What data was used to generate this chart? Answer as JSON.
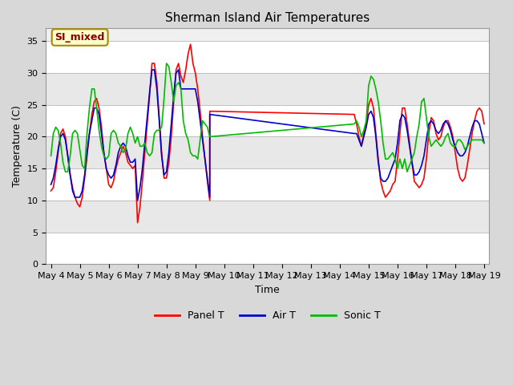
{
  "title": "Sherman Island Air Temperatures",
  "xlabel": "Time",
  "ylabel": "Temperature (C)",
  "xlim_days": [
    3.83,
    19.17
  ],
  "ylim": [
    0,
    37
  ],
  "yticks": [
    0,
    5,
    10,
    15,
    20,
    25,
    30,
    35
  ],
  "xtick_labels": [
    "May 4",
    "May 5",
    "May 6",
    "May 7",
    "May 8",
    "May 9",
    "May 10",
    "May 11",
    "May 12",
    "May 13",
    "May 14",
    "May 15",
    "May 16",
    "May 17",
    "May 18",
    "May 19"
  ],
  "xtick_days": [
    4,
    5,
    6,
    7,
    8,
    9,
    10,
    11,
    12,
    13,
    14,
    15,
    16,
    17,
    18,
    19
  ],
  "fig_bg_color": "#d8d8d8",
  "plot_bg_color": "#f0f0f0",
  "grid_color": "#ffffff",
  "annotation_text": "SI_mixed",
  "annotation_color": "#8b0000",
  "annotation_bg": "#ffffcc",
  "annotation_box_edge": "#aa8800",
  "panel_T_color": "#ff0000",
  "air_T_color": "#0000cc",
  "sonic_T_color": "#00bb00",
  "panel_T_label": "Panel T",
  "air_T_label": "Air T",
  "sonic_T_label": "Sonic T",
  "panel_T_x": [
    4.0,
    4.083,
    4.167,
    4.25,
    4.333,
    4.417,
    4.5,
    4.583,
    4.667,
    4.75,
    4.833,
    4.917,
    5.0,
    5.083,
    5.167,
    5.25,
    5.333,
    5.417,
    5.5,
    5.583,
    5.667,
    5.75,
    5.833,
    5.917,
    6.0,
    6.083,
    6.167,
    6.25,
    6.333,
    6.417,
    6.5,
    6.583,
    6.667,
    6.75,
    6.833,
    6.917,
    7.0,
    7.083,
    7.167,
    7.25,
    7.333,
    7.417,
    7.5,
    7.583,
    7.667,
    7.75,
    7.833,
    7.917,
    8.0,
    8.083,
    8.167,
    8.25,
    8.333,
    8.417,
    8.5,
    8.583,
    8.667,
    8.75,
    8.833,
    8.917,
    9.0,
    9.083,
    9.167,
    9.25,
    9.333,
    9.417,
    9.5,
    9.5,
    14.5,
    14.5,
    14.583,
    14.667,
    14.75,
    14.833,
    14.917,
    15.0,
    15.083,
    15.167,
    15.25,
    15.333,
    15.417,
    15.5,
    15.583,
    15.667,
    15.75,
    15.833,
    15.917,
    16.0,
    16.083,
    16.167,
    16.25,
    16.333,
    16.417,
    16.5,
    16.583,
    16.667,
    16.75,
    16.833,
    16.917,
    17.0,
    17.083,
    17.167,
    17.25,
    17.333,
    17.417,
    17.5,
    17.583,
    17.667,
    17.75,
    17.833,
    17.917,
    18.0,
    18.083,
    18.167,
    18.25,
    18.333,
    18.417,
    18.5,
    18.583,
    18.667,
    18.75,
    18.833,
    18.917,
    19.0
  ],
  "panel_T_y": [
    11.5,
    12.0,
    14.5,
    17.5,
    20.5,
    21.2,
    20.0,
    17.0,
    14.0,
    12.0,
    10.5,
    9.5,
    9.0,
    10.5,
    13.5,
    17.0,
    20.5,
    23.5,
    25.5,
    26.0,
    24.5,
    21.5,
    17.5,
    15.0,
    12.5,
    12.0,
    13.0,
    15.0,
    16.5,
    17.5,
    18.5,
    17.5,
    16.0,
    15.5,
    15.0,
    15.5,
    6.5,
    9.0,
    13.0,
    17.5,
    22.0,
    26.5,
    31.5,
    31.5,
    28.5,
    23.0,
    17.5,
    13.5,
    13.5,
    16.0,
    20.0,
    25.5,
    30.5,
    31.5,
    29.5,
    28.5,
    30.5,
    33.0,
    34.5,
    31.5,
    30.0,
    27.5,
    24.0,
    20.0,
    16.5,
    13.0,
    10.0,
    24.0,
    23.5,
    23.5,
    22.0,
    20.0,
    18.5,
    20.5,
    22.0,
    25.0,
    26.0,
    24.5,
    20.5,
    16.5,
    13.0,
    11.5,
    10.5,
    11.0,
    11.5,
    12.5,
    13.0,
    16.5,
    20.5,
    24.5,
    24.5,
    22.0,
    19.0,
    16.0,
    13.0,
    12.5,
    12.0,
    12.5,
    13.5,
    16.5,
    20.5,
    23.0,
    22.5,
    20.5,
    19.5,
    20.0,
    21.5,
    22.5,
    22.5,
    21.5,
    20.0,
    17.5,
    15.0,
    13.5,
    13.0,
    13.5,
    15.5,
    18.0,
    20.5,
    22.5,
    24.0,
    24.5,
    24.0,
    22.0
  ],
  "air_T_x": [
    4.0,
    4.083,
    4.167,
    4.25,
    4.333,
    4.417,
    4.5,
    4.583,
    4.667,
    4.75,
    4.833,
    4.917,
    5.0,
    5.083,
    5.167,
    5.25,
    5.333,
    5.417,
    5.5,
    5.583,
    5.667,
    5.75,
    5.833,
    5.917,
    6.0,
    6.083,
    6.167,
    6.25,
    6.333,
    6.417,
    6.5,
    6.583,
    6.667,
    6.75,
    6.833,
    6.917,
    7.0,
    7.083,
    7.167,
    7.25,
    7.333,
    7.417,
    7.5,
    7.583,
    7.667,
    7.75,
    7.833,
    7.917,
    8.0,
    8.083,
    8.167,
    8.25,
    8.333,
    8.417,
    8.5,
    8.583,
    8.667,
    8.75,
    8.833,
    8.917,
    9.0,
    9.083,
    9.167,
    9.25,
    9.333,
    9.417,
    9.5,
    9.5,
    14.5,
    14.5,
    14.583,
    14.667,
    14.75,
    14.833,
    14.917,
    15.0,
    15.083,
    15.167,
    15.25,
    15.333,
    15.417,
    15.5,
    15.583,
    15.667,
    15.75,
    15.833,
    15.917,
    16.0,
    16.083,
    16.167,
    16.25,
    16.333,
    16.417,
    16.5,
    16.583,
    16.667,
    16.75,
    16.833,
    16.917,
    17.0,
    17.083,
    17.167,
    17.25,
    17.333,
    17.417,
    17.5,
    17.583,
    17.667,
    17.75,
    17.833,
    17.917,
    18.0,
    18.083,
    18.167,
    18.25,
    18.333,
    18.417,
    18.5,
    18.583,
    18.667,
    18.75,
    18.833,
    18.917,
    19.0
  ],
  "air_T_y": [
    12.5,
    13.5,
    15.5,
    18.0,
    20.0,
    20.5,
    19.5,
    17.0,
    14.0,
    11.5,
    10.5,
    10.5,
    10.5,
    11.5,
    14.0,
    17.5,
    20.5,
    22.5,
    24.5,
    24.5,
    23.5,
    20.5,
    17.5,
    15.0,
    14.0,
    13.5,
    14.0,
    15.5,
    17.5,
    18.5,
    19.0,
    18.5,
    17.0,
    16.0,
    16.0,
    16.5,
    10.0,
    12.0,
    15.0,
    19.0,
    23.0,
    27.0,
    30.5,
    30.5,
    27.5,
    22.5,
    17.0,
    14.0,
    14.5,
    17.5,
    22.0,
    26.5,
    30.0,
    30.5,
    27.5,
    27.5,
    27.5,
    27.5,
    27.5,
    27.5,
    27.5,
    25.5,
    22.5,
    19.5,
    16.5,
    13.5,
    10.5,
    23.5,
    20.5,
    20.5,
    20.5,
    19.5,
    18.5,
    20.0,
    21.5,
    23.5,
    24.0,
    23.0,
    20.0,
    16.0,
    13.5,
    13.0,
    13.0,
    13.5,
    14.5,
    15.5,
    16.5,
    19.0,
    22.5,
    23.5,
    23.0,
    21.0,
    18.5,
    16.0,
    14.0,
    14.0,
    14.5,
    15.5,
    17.0,
    19.5,
    22.0,
    22.5,
    22.0,
    21.0,
    20.5,
    21.0,
    22.0,
    22.5,
    22.0,
    21.0,
    19.5,
    18.5,
    17.5,
    17.0,
    17.0,
    17.5,
    18.5,
    20.0,
    21.5,
    22.5,
    22.5,
    22.0,
    20.5,
    19.0
  ],
  "sonic_T_x": [
    4.0,
    4.083,
    4.167,
    4.25,
    4.333,
    4.417,
    4.5,
    4.583,
    4.667,
    4.75,
    4.833,
    4.917,
    5.0,
    5.083,
    5.167,
    5.25,
    5.333,
    5.417,
    5.5,
    5.583,
    5.667,
    5.75,
    5.833,
    5.917,
    6.0,
    6.083,
    6.167,
    6.25,
    6.333,
    6.417,
    6.5,
    6.583,
    6.667,
    6.75,
    6.833,
    6.917,
    7.0,
    7.083,
    7.167,
    7.25,
    7.333,
    7.417,
    7.5,
    7.583,
    7.667,
    7.75,
    7.833,
    7.917,
    8.0,
    8.083,
    8.167,
    8.25,
    8.333,
    8.417,
    8.5,
    8.583,
    8.667,
    8.75,
    8.833,
    8.917,
    9.0,
    9.083,
    9.167,
    9.25,
    9.333,
    9.417,
    9.5,
    14.5,
    14.583,
    14.667,
    14.75,
    14.833,
    14.917,
    15.0,
    15.083,
    15.167,
    15.25,
    15.333,
    15.417,
    15.5,
    15.583,
    15.667,
    15.75,
    15.833,
    15.917,
    16.0,
    16.083,
    16.167,
    16.25,
    16.333,
    16.417,
    16.5,
    16.583,
    16.667,
    16.75,
    16.833,
    16.917,
    17.0,
    17.083,
    17.167,
    17.25,
    17.333,
    17.417,
    17.5,
    17.583,
    17.667,
    17.75,
    17.833,
    17.917,
    18.0,
    18.083,
    18.167,
    18.25,
    18.333,
    18.417,
    18.5,
    18.583,
    18.667,
    18.75,
    18.833,
    18.917,
    19.0
  ],
  "sonic_T_y": [
    17.0,
    20.5,
    21.5,
    21.0,
    19.0,
    16.0,
    14.5,
    14.5,
    17.0,
    20.5,
    21.0,
    20.5,
    18.0,
    15.5,
    15.0,
    20.5,
    24.5,
    27.5,
    27.5,
    24.5,
    21.0,
    18.5,
    17.0,
    16.5,
    17.0,
    20.5,
    21.0,
    20.5,
    19.0,
    18.5,
    17.5,
    18.0,
    20.5,
    21.5,
    20.5,
    19.0,
    20.0,
    18.5,
    18.5,
    19.0,
    17.5,
    17.0,
    17.5,
    20.5,
    21.0,
    21.0,
    21.5,
    26.0,
    31.5,
    31.0,
    28.5,
    25.5,
    28.0,
    28.5,
    27.5,
    22.5,
    20.5,
    19.5,
    17.5,
    17.0,
    17.0,
    16.5,
    19.5,
    22.5,
    22.0,
    21.5,
    20.0,
    22.0,
    22.5,
    21.5,
    20.0,
    21.0,
    22.5,
    28.0,
    29.5,
    29.0,
    27.5,
    25.5,
    22.5,
    19.0,
    16.5,
    16.5,
    17.0,
    17.5,
    16.5,
    15.0,
    16.5,
    15.0,
    16.5,
    14.5,
    15.5,
    16.5,
    17.5,
    20.0,
    22.0,
    25.5,
    26.0,
    23.0,
    20.0,
    18.5,
    19.0,
    19.5,
    19.0,
    18.5,
    19.0,
    20.0,
    20.5,
    19.0,
    18.5,
    18.5,
    19.5,
    19.5,
    19.0,
    18.0,
    18.5,
    19.0,
    19.5,
    19.5,
    19.5,
    19.5,
    19.5,
    19.0
  ]
}
